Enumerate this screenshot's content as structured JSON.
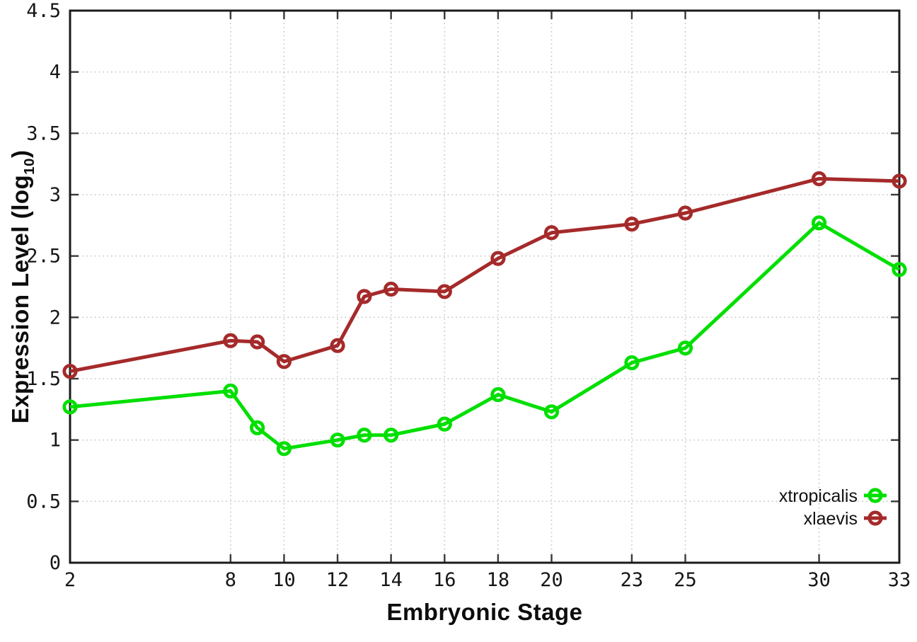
{
  "figure": {
    "background": "#ffffff",
    "axis_color": "#1b1b1b",
    "tick_color": "#3a3a3a",
    "grid_color": "#c4c4c4",
    "text_color": "#161616"
  },
  "chart_data": {
    "type": "line",
    "title": "",
    "xlabel": "Embryonic Stage",
    "ylabel": "Expression Level (log10)",
    "ylabel_parts": {
      "prefix": "Expression Level (log",
      "subscript": "10",
      "suffix": ")"
    },
    "xlim": [
      2,
      33
    ],
    "ylim": [
      0,
      4.5
    ],
    "x": [
      2,
      8,
      9,
      10,
      12,
      13,
      14,
      16,
      18,
      20,
      23,
      25,
      30,
      33
    ],
    "xticks": [
      2,
      8,
      10,
      12,
      14,
      16,
      18,
      20,
      23,
      25,
      30,
      33
    ],
    "yticks": [
      0,
      0.5,
      1,
      1.5,
      2,
      2.5,
      3,
      3.5,
      4,
      4.5
    ],
    "grid": "dotted",
    "legend_position": "bottom-right",
    "marker": "open-circle",
    "series": [
      {
        "name": "xtropicalis",
        "color": "#00df00",
        "values": [
          1.27,
          1.4,
          1.1,
          0.93,
          1.0,
          1.04,
          1.04,
          1.13,
          1.37,
          1.23,
          1.63,
          1.75,
          2.77,
          2.39
        ]
      },
      {
        "name": "xlaevis",
        "color": "#a52a2a",
        "values": [
          1.56,
          1.81,
          1.8,
          1.64,
          1.77,
          2.17,
          2.23,
          2.21,
          2.48,
          2.69,
          2.76,
          2.85,
          3.13,
          3.11
        ]
      }
    ]
  }
}
